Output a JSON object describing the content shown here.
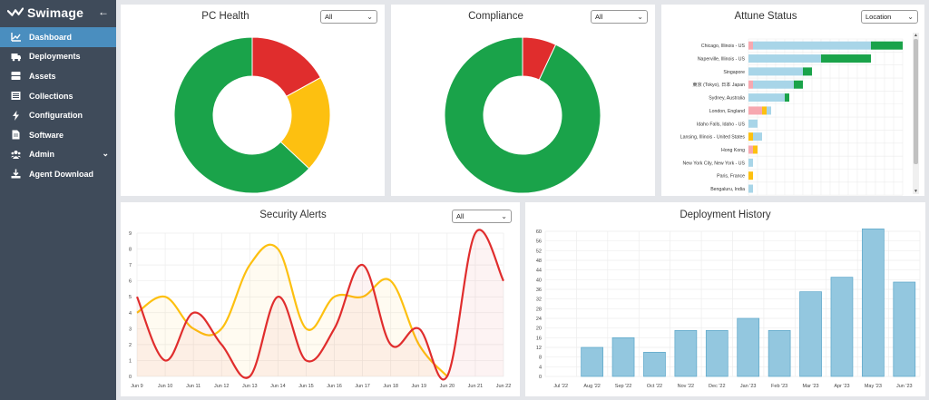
{
  "brand": {
    "name": "Swimage"
  },
  "nav": [
    {
      "label": "Dashboard",
      "icon": "chart-line-icon",
      "active": true
    },
    {
      "label": "Deployments",
      "icon": "truck-icon"
    },
    {
      "label": "Assets",
      "icon": "server-icon"
    },
    {
      "label": "Collections",
      "icon": "list-icon"
    },
    {
      "label": "Configuration",
      "icon": "bolt-icon"
    },
    {
      "label": "Software",
      "icon": "file-icon"
    },
    {
      "label": "Admin",
      "icon": "users-icon",
      "caret": true
    },
    {
      "label": "Agent Download",
      "icon": "download-icon"
    }
  ],
  "colors": {
    "green": "#1aa34a",
    "red": "#e02d2d",
    "yellow": "#fdc010",
    "lightblue": "#a8d5e8",
    "pink": "#f7a8b0",
    "barblue": "#93c7df"
  },
  "pc_health": {
    "title": "PC Health",
    "filter": "All",
    "chart_data": {
      "type": "pie",
      "slices": [
        {
          "value": 17,
          "color": "#e02d2d"
        },
        {
          "value": 20,
          "color": "#fdc010"
        },
        {
          "value": 63,
          "color": "#1aa34a"
        }
      ]
    }
  },
  "compliance": {
    "title": "Compliance",
    "filter": "All",
    "chart_data": {
      "type": "pie",
      "slices": [
        {
          "value": 7,
          "color": "#e02d2d"
        },
        {
          "value": 93,
          "color": "#1aa34a"
        }
      ]
    }
  },
  "attune": {
    "title": "Attune Status",
    "filter": "Location",
    "chart_data": {
      "type": "bar",
      "orientation": "horizontal",
      "categories": [
        "Chicago, Illinois - US",
        "Naperville, Illinois - US",
        "Singapore",
        "東京 (Tokyo), 日本 Japan",
        "Sydney, Australia",
        "London, England",
        "Idaho Falls, Idaho - US",
        "Lansing, Illinois - United States",
        "Hong Kong",
        "New York City, New York - US",
        "Paris, France",
        "Bengaluru, India"
      ],
      "series": [
        {
          "color": "#f7a8b0",
          "values": [
            1,
            0,
            0,
            1,
            0,
            3,
            0,
            0,
            1,
            0,
            0,
            0
          ]
        },
        {
          "color": "#fdc010",
          "values": [
            0,
            0,
            0,
            0,
            0,
            1,
            0,
            1,
            1,
            0,
            1,
            0
          ]
        },
        {
          "color": "#a8d5e8",
          "values": [
            26,
            16,
            12,
            9,
            8,
            1,
            2,
            2,
            0,
            1,
            0,
            1
          ]
        },
        {
          "color": "#1aa34a",
          "values": [
            7,
            11,
            2,
            2,
            1,
            0,
            0,
            0,
            0,
            0,
            0,
            0
          ]
        }
      ],
      "xlim": [
        0,
        34
      ]
    }
  },
  "security": {
    "title": "Security Alerts",
    "filter": "All",
    "chart_data": {
      "type": "line",
      "categories": [
        "Jun 9",
        "Jun 10",
        "Jun 11",
        "Jun 12",
        "Jun 13",
        "Jun 14",
        "Jun 15",
        "Jun 16",
        "Jun 17",
        "Jun 18",
        "Jun 19",
        "Jun 20",
        "Jun 21",
        "Jun 22"
      ],
      "series": [
        {
          "color": "#fdc010",
          "values": [
            4,
            5,
            3,
            3,
            7,
            8,
            3,
            5,
            5,
            6,
            2,
            0,
            null,
            null
          ]
        },
        {
          "color": "#e02d2d",
          "values": [
            5,
            1,
            4,
            2,
            0,
            5,
            1,
            3,
            7,
            2,
            3,
            0,
            9,
            6
          ]
        }
      ],
      "ylim": [
        0,
        9
      ],
      "yticks": [
        0,
        1,
        2,
        3,
        4,
        5,
        6,
        7,
        8,
        9
      ]
    }
  },
  "deploy": {
    "title": "Deployment History",
    "chart_data": {
      "type": "bar",
      "categories": [
        "Jul '22",
        "Aug '22",
        "Sep '22",
        "Oct '22",
        "Nov '22",
        "Dec '22",
        "Jan '23",
        "Feb '23",
        "Mar '23",
        "Apr '23",
        "May '23",
        "Jun '23"
      ],
      "values": [
        0,
        12,
        16,
        10,
        19,
        19,
        24,
        19,
        35,
        41,
        61,
        39
      ],
      "ylim": [
        0,
        60
      ],
      "yticks": [
        0,
        4,
        8,
        12,
        16,
        20,
        24,
        28,
        32,
        36,
        40,
        44,
        48,
        52,
        56,
        60
      ]
    }
  }
}
